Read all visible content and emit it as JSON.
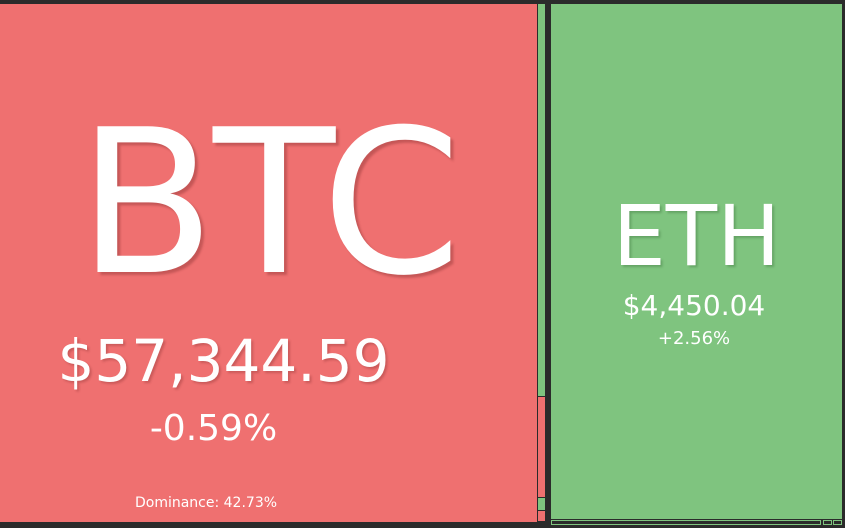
{
  "colors": {
    "down": "#ef7070",
    "up": "#7fc47f",
    "background": "#2b2b2b"
  },
  "tiles": {
    "btc": {
      "symbol": "BTC",
      "price": "$57,344.59",
      "change": "-0.59%",
      "dominance": "Dominance: 42.73%"
    },
    "eth": {
      "symbol": "ETH",
      "price": "$4,450.04",
      "change": "+2.56%"
    }
  },
  "small_tiles": [
    {
      "direction": "up"
    },
    {
      "direction": "down"
    },
    {
      "direction": "up"
    },
    {
      "direction": "down"
    },
    {
      "direction": "up"
    },
    {
      "direction": "up"
    },
    {
      "direction": "up"
    }
  ]
}
